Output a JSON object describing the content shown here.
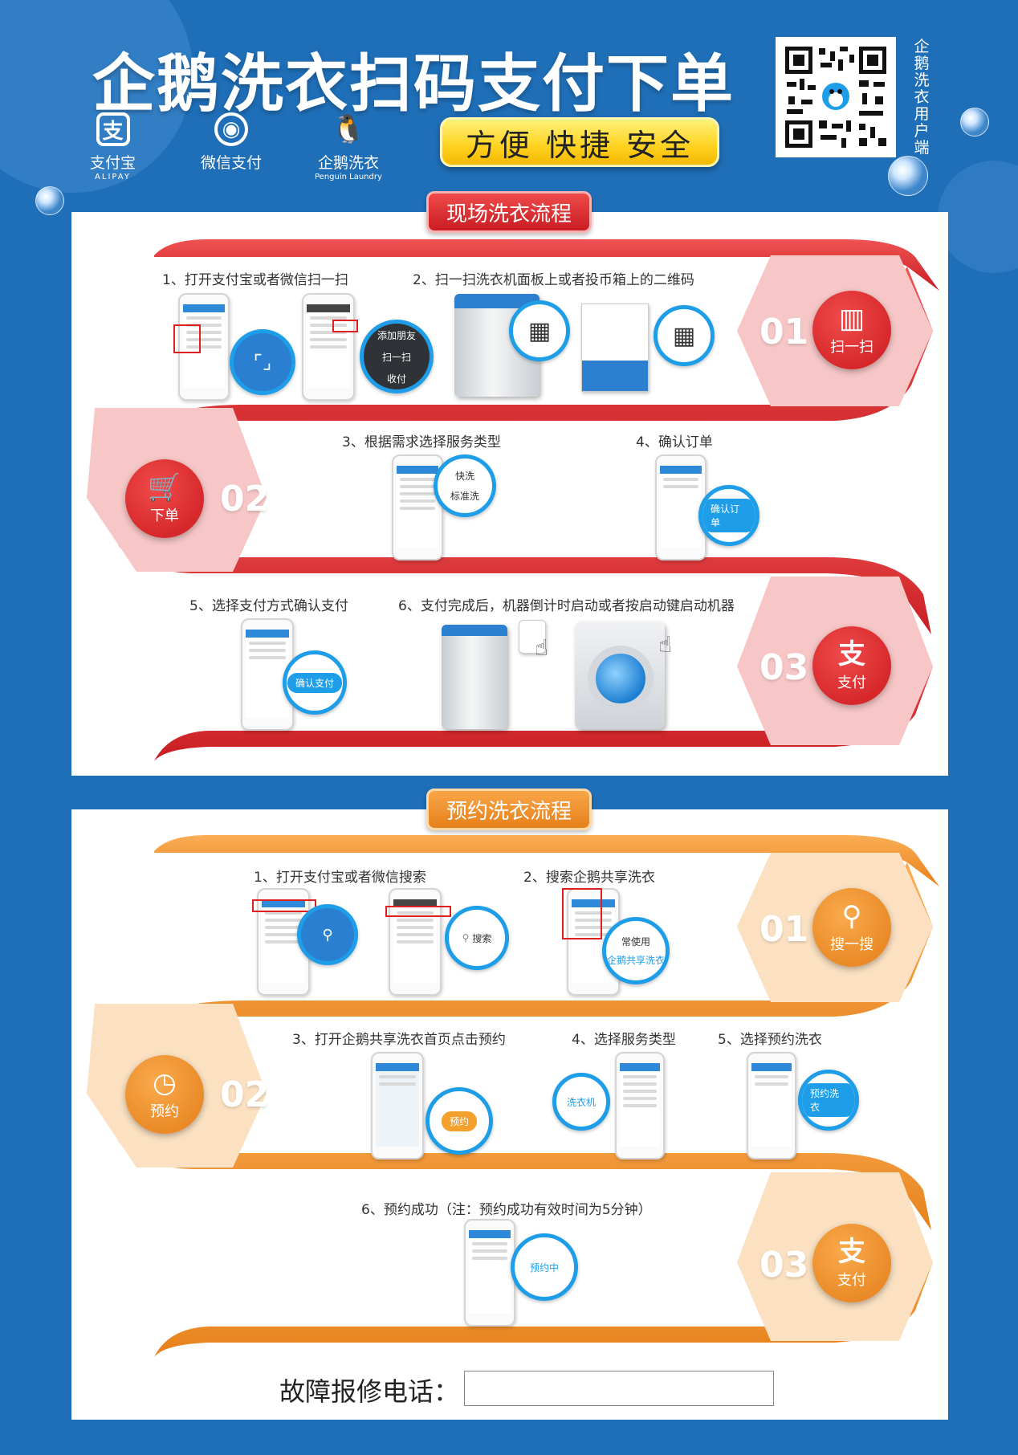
{
  "header": {
    "title": "企鹅洗衣扫码支付下单",
    "slogan": "方便 快捷 安全",
    "qr_caption": "企鹅洗衣用户端",
    "brands": [
      {
        "name": "支付宝",
        "sub": "ALIPAY",
        "glyph": "支"
      },
      {
        "name": "微信支付",
        "sub": "",
        "glyph": "◉"
      },
      {
        "name": "企鹅洗衣",
        "sub": "Penguin Laundry",
        "glyph": "🐧"
      }
    ]
  },
  "onsite": {
    "title": "现场洗衣流程",
    "steps": [
      "1、打开支付宝或者微信扫一扫",
      "2、扫一扫洗衣机面板上或者投币箱上的二维码",
      "3、根据需求选择服务类型",
      "4、确认订单",
      "5、选择支付方式确认支付",
      "6、支付完成后，机器倒计时启动或者按启动键启动机器"
    ],
    "badges": [
      {
        "num": "01",
        "glyph": "▥",
        "label": "扫一扫"
      },
      {
        "num": "02",
        "glyph": "🛒",
        "label": "下单"
      },
      {
        "num": "03",
        "glyph": "支",
        "label": "支付"
      }
    ],
    "mag": {
      "add_friend": "添加朋友",
      "scan": "扫一扫",
      "payment": "收付",
      "quick_wash": "快洗",
      "standard_wash": "标准洗",
      "confirm_order": "确认订单",
      "confirm_pay": "确认支付"
    }
  },
  "reserve": {
    "title": "预约洗衣流程",
    "steps": [
      "1、打开支付宝或者微信搜索",
      "2、搜索企鹅共享洗衣",
      "3、打开企鹅共享洗衣首页点击预约",
      "4、选择服务类型",
      "5、选择预约洗衣",
      "6、预约成功（注：预约成功有效时间为5分钟）"
    ],
    "badges": [
      {
        "num": "01",
        "glyph": "⚲",
        "label": "搜一搜"
      },
      {
        "num": "02",
        "glyph": "◷",
        "label": "预约"
      },
      {
        "num": "03",
        "glyph": "支",
        "label": "支付"
      }
    ],
    "mag": {
      "search": "搜索",
      "common": "常使用",
      "penguin_share": "企鹅共享洗衣",
      "reserve": "预约",
      "washer": "洗衣机",
      "reserve_wash": "预约洗衣",
      "reserved": "预约中"
    }
  },
  "footer": {
    "repair_label": "故障报修电话：",
    "repair_value": ""
  },
  "colors": {
    "background": "#1f6fb8",
    "red": "#d8242a",
    "orange": "#ee8f27",
    "accent_blue": "#1e9de8"
  }
}
